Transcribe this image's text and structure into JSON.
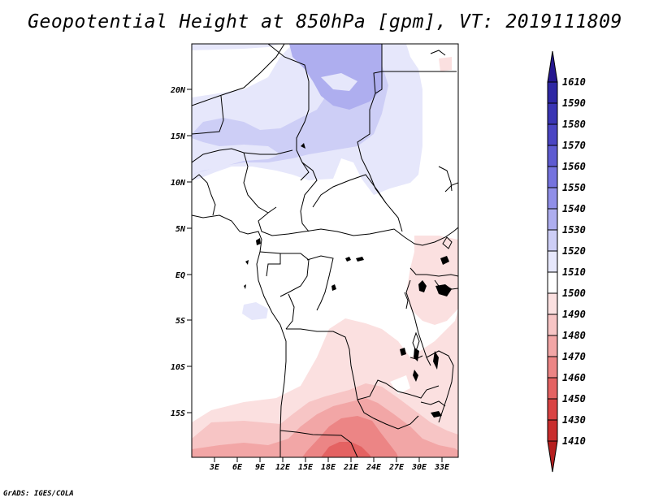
{
  "title": "Geopotential Height at 850hPa [gpm], VT: 2019111809",
  "credit": "GrADS: IGES/COLA",
  "map": {
    "lat_labels": [
      "20N",
      "15N",
      "10N",
      "5N",
      "EQ",
      "5S",
      "10S",
      "15S"
    ],
    "lon_labels": [
      "3E",
      "6E",
      "9E",
      "12E",
      "15E",
      "18E",
      "21E",
      "24E",
      "27E",
      "30E",
      "33E"
    ]
  },
  "legend": {
    "levels": [
      "1610",
      "1590",
      "1580",
      "1570",
      "1560",
      "1550",
      "1540",
      "1530",
      "1520",
      "1510",
      "1500",
      "1490",
      "1480",
      "1470",
      "1460",
      "1450",
      "1430",
      "1410"
    ],
    "colors": [
      "#25178f",
      "#2e27a4",
      "#3a35b4",
      "#4a45c3",
      "#5e5bd1",
      "#7573de",
      "#908fe8",
      "#aeaeef",
      "#cdcef6",
      "#e6e7fb",
      "#ffffff",
      "#fbe0e0",
      "#f7c5c5",
      "#f2a6a6",
      "#ec8585",
      "#e46262",
      "#d94343",
      "#c92d2d",
      "#b51f1f"
    ]
  }
}
